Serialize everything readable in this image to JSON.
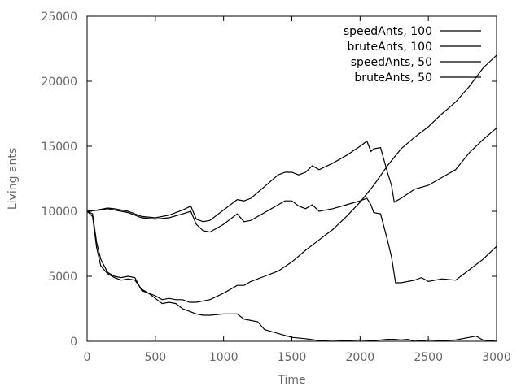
{
  "chart_data": {
    "type": "line",
    "title": "",
    "xlabel": "Time",
    "ylabel": "Living ants",
    "xlim": [
      0,
      3000
    ],
    "ylim": [
      0,
      25000
    ],
    "xticks": [
      0,
      500,
      1000,
      1500,
      2000,
      2500,
      3000
    ],
    "yticks": [
      0,
      5000,
      10000,
      15000,
      20000,
      25000
    ],
    "xtick_labels": [
      "0",
      "500",
      "1000",
      "1500",
      "2000",
      "2500",
      "3000"
    ],
    "ytick_labels": [
      "0",
      "5000",
      "10000",
      "15000",
      "20000",
      "25000"
    ],
    "grid": false,
    "legend_position": "top-right",
    "line_color": "#000000",
    "axis_color": "#000000",
    "label_color": "#666666",
    "series": [
      {
        "name": "speedAnts, 100",
        "x": [
          0,
          50,
          100,
          150,
          200,
          300,
          400,
          500,
          600,
          700,
          760,
          800,
          850,
          900,
          1000,
          1100,
          1150,
          1200,
          1300,
          1400,
          1450,
          1500,
          1550,
          1600,
          1650,
          1700,
          1800,
          1900,
          2000,
          2050,
          2080,
          2100,
          2150,
          2200,
          2230,
          2250,
          2300,
          2400,
          2500,
          2600,
          2700,
          2800,
          2900,
          3000
        ],
        "y": [
          10000,
          10050,
          10150,
          10250,
          10200,
          10000,
          9600,
          9500,
          9700,
          10100,
          10400,
          9400,
          9200,
          9300,
          10100,
          10900,
          10800,
          11000,
          11900,
          12800,
          13000,
          13000,
          12800,
          13000,
          13500,
          13200,
          13700,
          14300,
          15000,
          15400,
          14600,
          14800,
          14900,
          13000,
          12000,
          10700,
          11000,
          11700,
          12000,
          12600,
          13200,
          14500,
          15500,
          16400
        ]
      },
      {
        "name": "bruteAnts, 100",
        "x": [
          0,
          50,
          100,
          150,
          200,
          300,
          400,
          500,
          600,
          700,
          760,
          800,
          850,
          900,
          1000,
          1100,
          1150,
          1200,
          1300,
          1400,
          1450,
          1500,
          1550,
          1600,
          1650,
          1700,
          1800,
          1900,
          2000,
          2050,
          2080,
          2100,
          2150,
          2200,
          2230,
          2260,
          2300,
          2400,
          2450,
          2500,
          2600,
          2700,
          2800,
          2900,
          3000
        ],
        "y": [
          10000,
          10050,
          10100,
          10200,
          10100,
          9900,
          9500,
          9400,
          9500,
          9800,
          10000,
          9000,
          8500,
          8400,
          9000,
          9800,
          9200,
          9300,
          9900,
          10500,
          10800,
          10800,
          10400,
          10200,
          10500,
          10000,
          10200,
          10500,
          10800,
          11000,
          10500,
          9900,
          9800,
          7800,
          6500,
          4500,
          4500,
          4700,
          4900,
          4600,
          4800,
          4700,
          5500,
          6300,
          7300
        ]
      },
      {
        "name": "speedAnts, 50",
        "x": [
          0,
          40,
          70,
          100,
          150,
          200,
          250,
          300,
          350,
          400,
          450,
          500,
          550,
          600,
          650,
          700,
          750,
          800,
          850,
          900,
          1000,
          1100,
          1150,
          1200,
          1300,
          1400,
          1500,
          1600,
          1700,
          1800,
          1900,
          2000,
          2100,
          2200,
          2300,
          2400,
          2500,
          2600,
          2700,
          2800,
          2900,
          3000
        ],
        "y": [
          10000,
          9800,
          7600,
          6300,
          5300,
          5000,
          4900,
          5000,
          4900,
          3900,
          3700,
          3500,
          3200,
          3300,
          3200,
          3200,
          3000,
          3000,
          3100,
          3200,
          3700,
          4300,
          4300,
          4600,
          5000,
          5400,
          6100,
          7000,
          7800,
          8600,
          9600,
          10700,
          12000,
          13500,
          14800,
          15700,
          16500,
          17500,
          18400,
          19600,
          21000,
          22000
        ]
      },
      {
        "name": "bruteAnts, 50",
        "x": [
          0,
          40,
          70,
          100,
          150,
          200,
          250,
          300,
          350,
          400,
          450,
          500,
          550,
          600,
          650,
          700,
          750,
          800,
          850,
          900,
          1000,
          1100,
          1150,
          1200,
          1250,
          1300,
          1400,
          1500,
          1600,
          1700,
          1800,
          1900,
          2000,
          2100,
          2200,
          2250,
          2300,
          2350,
          2400,
          2500,
          2600,
          2700,
          2800,
          2850,
          2900,
          3000
        ],
        "y": [
          10000,
          9600,
          7200,
          5800,
          5200,
          4900,
          4700,
          4800,
          4700,
          4000,
          3700,
          3300,
          2900,
          3000,
          2900,
          2500,
          2300,
          2100,
          2000,
          2000,
          2100,
          2100,
          1700,
          1600,
          1500,
          900,
          600,
          300,
          200,
          50,
          0,
          50,
          100,
          50,
          150,
          150,
          100,
          150,
          0,
          100,
          50,
          100,
          300,
          400,
          100,
          0
        ]
      }
    ]
  }
}
